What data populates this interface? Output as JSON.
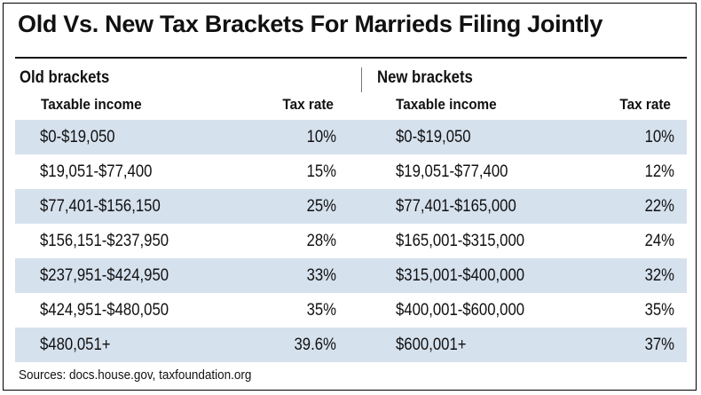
{
  "chart_data": {
    "type": "table",
    "title": "Old Vs. New Tax Brackets For Marrieds Filing Jointly",
    "groups": [
      {
        "name": "Old brackets",
        "columns": [
          "Taxable income",
          "Tax rate"
        ]
      },
      {
        "name": "New brackets",
        "columns": [
          "Taxable income",
          "Tax rate"
        ]
      }
    ],
    "rows": [
      {
        "old_income": "$0-$19,050",
        "old_rate": "10%",
        "new_income": "$0-$19,050",
        "new_rate": "10%"
      },
      {
        "old_income": "$19,051-$77,400",
        "old_rate": "15%",
        "new_income": "$19,051-$77,400",
        "new_rate": "12%"
      },
      {
        "old_income": "$77,401-$156,150",
        "old_rate": "25%",
        "new_income": "$77,401-$165,000",
        "new_rate": "22%"
      },
      {
        "old_income": "$156,151-$237,950",
        "old_rate": "28%",
        "new_income": "$165,001-$315,000",
        "new_rate": "24%"
      },
      {
        "old_income": "$237,951-$424,950",
        "old_rate": "33%",
        "new_income": "$315,001-$400,000",
        "new_rate": "32%"
      },
      {
        "old_income": "$424,951-$480,050",
        "old_rate": "35%",
        "new_income": "$400,001-$600,000",
        "new_rate": "35%"
      },
      {
        "old_income": "$480,051+",
        "old_rate": "39.6%",
        "new_income": "$600,001+",
        "new_rate": "37%"
      }
    ],
    "source": "Sources: docs.house.gov, taxfoundation.org",
    "colors": {
      "shaded_row": "#d6e1ee",
      "text": "#111111",
      "rule": "#111111"
    }
  }
}
